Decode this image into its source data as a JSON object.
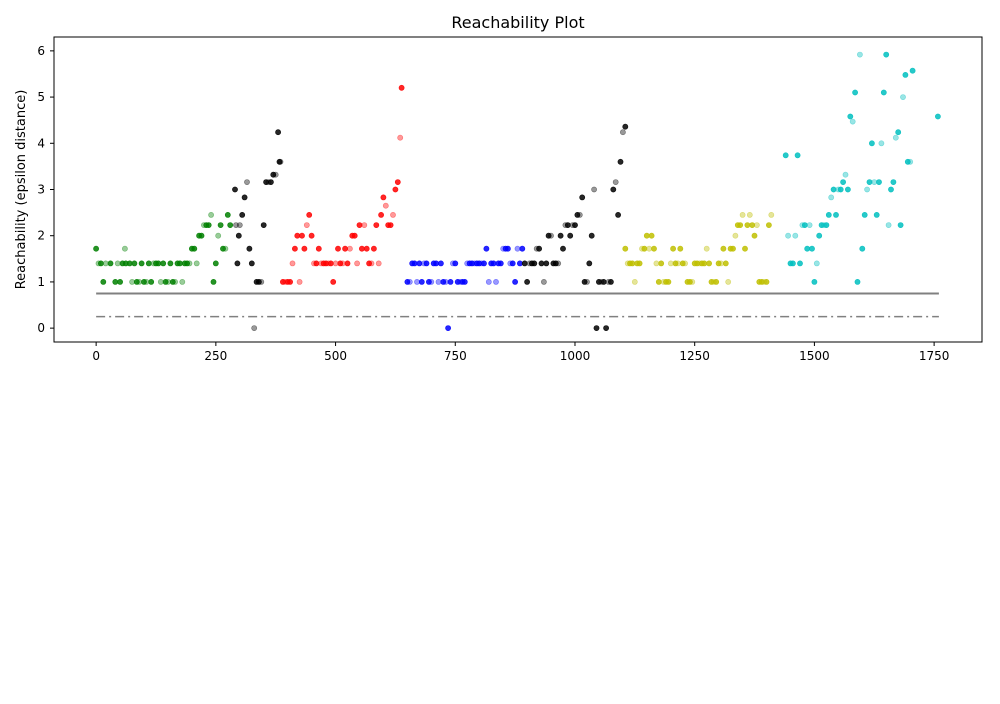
{
  "chart_data": {
    "type": "scatter",
    "title": "Reachability Plot",
    "xlabel": "",
    "ylabel": "Reachability (epsilon distance)",
    "xlim": [
      -88,
      1850
    ],
    "ylim": [
      -0.3,
      6.3
    ],
    "xticks": [
      0,
      250,
      500,
      750,
      1000,
      1250,
      1500,
      1750
    ],
    "yticks": [
      0,
      1,
      2,
      3,
      4,
      5,
      6
    ],
    "xtick_labels": [
      "0",
      "250",
      "500",
      "750",
      "1000",
      "1250",
      "1500",
      "1750"
    ],
    "ytick_labels": [
      "0",
      "1",
      "2",
      "3",
      "4",
      "5",
      "6"
    ],
    "grid": false,
    "legend": "none",
    "reference_lines": [
      {
        "y": 0.75,
        "style": "solid",
        "color": "#808080",
        "x_start": 0,
        "x_end": 1760
      },
      {
        "y": 0.25,
        "style": "dashdot",
        "color": "#808080",
        "x_start": 0,
        "x_end": 1760
      }
    ],
    "series": [
      {
        "color": "#008000",
        "x_start": 0,
        "x_end": 290,
        "x": [
          0,
          5,
          10,
          15,
          20,
          30,
          40,
          45,
          50,
          55,
          60,
          62,
          70,
          75,
          80,
          85,
          90,
          95,
          100,
          105,
          110,
          115,
          120,
          125,
          130,
          135,
          140,
          145,
          150,
          155,
          160,
          165,
          170,
          175,
          180,
          185,
          190,
          195,
          200,
          205,
          210,
          215,
          220,
          225,
          230,
          235,
          240,
          245,
          250,
          255,
          260,
          265,
          270,
          275,
          280
        ],
        "y": [
          1.72,
          1.4,
          1.4,
          1.0,
          1.4,
          1.4,
          1.0,
          1.4,
          1.0,
          1.4,
          1.72,
          1.4,
          1.4,
          1.0,
          1.4,
          1.0,
          1.0,
          1.4,
          1.0,
          1.0,
          1.4,
          1.0,
          1.4,
          1.4,
          1.4,
          1.0,
          1.4,
          1.0,
          1.0,
          1.4,
          1.0,
          1.0,
          1.4,
          1.4,
          1.0,
          1.4,
          1.4,
          1.4,
          1.72,
          1.72,
          1.4,
          2.0,
          2.0,
          2.23,
          2.23,
          2.23,
          2.45,
          1.0,
          1.4,
          2.0,
          2.23,
          1.72,
          1.72,
          2.45,
          2.23
        ]
      },
      {
        "color": "#ff0000",
        "x_start": 390,
        "x_end": 640,
        "x": [
          390,
          395,
          400,
          405,
          410,
          415,
          420,
          425,
          430,
          435,
          440,
          445,
          450,
          455,
          460,
          465,
          470,
          475,
          480,
          485,
          490,
          495,
          500,
          505,
          510,
          515,
          520,
          525,
          530,
          535,
          540,
          545,
          550,
          555,
          560,
          565,
          570,
          575,
          580,
          585,
          590,
          595,
          600,
          605,
          610,
          615,
          620,
          625,
          630,
          635,
          638
        ],
        "y": [
          1.0,
          1.0,
          1.0,
          1.0,
          1.4,
          1.72,
          2.0,
          1.0,
          2.0,
          1.72,
          2.23,
          2.45,
          2.0,
          1.4,
          1.4,
          1.72,
          1.4,
          1.4,
          1.4,
          1.4,
          1.4,
          1.0,
          1.4,
          1.72,
          1.4,
          1.4,
          1.72,
          1.4,
          1.72,
          2.0,
          2.0,
          1.4,
          2.23,
          1.72,
          2.23,
          1.72,
          1.4,
          1.4,
          1.72,
          2.23,
          1.4,
          2.45,
          2.83,
          2.65,
          2.23,
          2.23,
          2.45,
          3.0,
          3.16,
          4.12,
          5.2
        ]
      },
      {
        "color": "#0000ff",
        "x_start": 650,
        "x_end": 890,
        "x": [
          650,
          655,
          660,
          665,
          670,
          675,
          680,
          685,
          690,
          695,
          700,
          705,
          710,
          715,
          720,
          725,
          730,
          735,
          740,
          745,
          750,
          755,
          760,
          765,
          770,
          775,
          780,
          785,
          790,
          795,
          800,
          805,
          810,
          815,
          820,
          825,
          830,
          835,
          840,
          845,
          850,
          855,
          860,
          865,
          870,
          875,
          880,
          885,
          890
        ],
        "y": [
          1.0,
          1.0,
          1.4,
          1.4,
          1.0,
          1.4,
          1.0,
          1.4,
          1.4,
          1.0,
          1.0,
          1.4,
          1.4,
          1.0,
          1.4,
          1.0,
          1.0,
          0.0,
          1.0,
          1.4,
          1.4,
          1.0,
          1.0,
          1.0,
          1.0,
          1.4,
          1.4,
          1.4,
          1.4,
          1.4,
          1.4,
          1.4,
          1.4,
          1.72,
          1.0,
          1.4,
          1.4,
          1.0,
          1.4,
          1.4,
          1.72,
          1.72,
          1.72,
          1.4,
          1.4,
          1.0,
          1.72,
          1.4,
          1.72
        ]
      },
      {
        "color": "#000000",
        "x_start": 290,
        "x_end": 1105,
        "x": [
          290,
          292,
          295,
          298,
          300,
          305,
          310,
          315,
          320,
          325,
          330,
          335,
          340,
          345,
          350,
          355,
          360,
          365,
          370,
          375,
          380,
          383,
          385,
          895,
          900,
          905,
          910,
          915,
          920,
          925,
          930,
          935,
          940,
          945,
          950,
          955,
          960,
          965,
          970,
          975,
          980,
          985,
          990,
          995,
          1000,
          1005,
          1010,
          1015,
          1020,
          1025,
          1030,
          1035,
          1040,
          1045,
          1050,
          1055,
          1060,
          1065,
          1070,
          1075,
          1080,
          1085,
          1090,
          1095,
          1100,
          1105
        ],
        "y": [
          3.0,
          2.23,
          1.4,
          2.0,
          2.23,
          2.45,
          2.83,
          3.16,
          1.72,
          1.4,
          0.0,
          1.0,
          1.0,
          1.0,
          2.23,
          3.16,
          3.16,
          3.16,
          3.32,
          3.32,
          4.24,
          3.6,
          3.6,
          1.4,
          1.0,
          1.4,
          1.4,
          1.4,
          1.72,
          1.72,
          1.4,
          1.0,
          1.4,
          2.0,
          2.0,
          1.4,
          1.4,
          1.4,
          2.0,
          1.72,
          2.23,
          2.23,
          2.0,
          2.23,
          2.23,
          2.45,
          2.45,
          2.83,
          1.0,
          1.0,
          1.4,
          2.0,
          3.0,
          0.0,
          1.0,
          1.0,
          1.0,
          0.0,
          1.0,
          1.0,
          3.0,
          3.16,
          2.45,
          3.6,
          4.24,
          4.36
        ]
      },
      {
        "color": "#bfbf00",
        "x_start": 1105,
        "x_end": 1410,
        "x": [
          1105,
          1110,
          1115,
          1120,
          1125,
          1130,
          1135,
          1140,
          1145,
          1150,
          1155,
          1160,
          1165,
          1170,
          1175,
          1180,
          1185,
          1190,
          1195,
          1200,
          1205,
          1210,
          1215,
          1220,
          1225,
          1230,
          1235,
          1240,
          1245,
          1250,
          1255,
          1260,
          1265,
          1270,
          1275,
          1280,
          1285,
          1290,
          1295,
          1300,
          1305,
          1310,
          1315,
          1320,
          1325,
          1330,
          1335,
          1340,
          1345,
          1350,
          1355,
          1360,
          1365,
          1370,
          1375,
          1380,
          1385,
          1390,
          1395,
          1400,
          1405,
          1410
        ],
        "y": [
          1.72,
          1.4,
          1.4,
          1.4,
          1.0,
          1.4,
          1.4,
          1.72,
          1.72,
          2.0,
          1.72,
          2.0,
          1.72,
          1.4,
          1.0,
          1.4,
          1.0,
          1.0,
          1.0,
          1.4,
          1.72,
          1.4,
          1.4,
          1.72,
          1.4,
          1.4,
          1.0,
          1.0,
          1.0,
          1.4,
          1.4,
          1.4,
          1.4,
          1.4,
          1.72,
          1.4,
          1.0,
          1.0,
          1.0,
          1.4,
          1.4,
          1.72,
          1.4,
          1.0,
          1.72,
          1.72,
          2.0,
          2.23,
          2.23,
          2.45,
          1.72,
          2.23,
          2.45,
          2.23,
          2.0,
          2.23,
          1.0,
          1.0,
          1.0,
          1.0,
          2.23,
          2.45
        ]
      },
      {
        "color": "#00bfbf",
        "x_start": 1440,
        "x_end": 1758,
        "x": [
          1440,
          1445,
          1450,
          1455,
          1460,
          1465,
          1470,
          1475,
          1480,
          1485,
          1490,
          1495,
          1500,
          1505,
          1510,
          1515,
          1520,
          1525,
          1530,
          1535,
          1540,
          1545,
          1550,
          1555,
          1560,
          1565,
          1570,
          1575,
          1580,
          1585,
          1590,
          1595,
          1600,
          1605,
          1610,
          1615,
          1620,
          1625,
          1630,
          1635,
          1640,
          1645,
          1650,
          1655,
          1660,
          1665,
          1670,
          1675,
          1680,
          1685,
          1690,
          1695,
          1700,
          1705,
          1758
        ],
        "y": [
          3.74,
          2.0,
          1.4,
          1.4,
          2.0,
          3.74,
          1.4,
          2.23,
          2.23,
          1.72,
          2.23,
          1.72,
          1.0,
          1.4,
          2.0,
          2.23,
          2.23,
          2.23,
          2.45,
          2.83,
          3.0,
          2.45,
          3.0,
          3.0,
          3.16,
          3.32,
          3.0,
          4.58,
          4.47,
          5.1,
          1.0,
          5.92,
          1.72,
          2.45,
          3.0,
          3.16,
          4.0,
          3.16,
          2.45,
          3.16,
          4.0,
          5.1,
          5.92,
          2.23,
          3.0,
          3.16,
          4.12,
          4.24,
          2.23,
          5.0,
          5.48,
          3.6,
          3.6,
          5.57,
          4.58
        ]
      }
    ]
  }
}
